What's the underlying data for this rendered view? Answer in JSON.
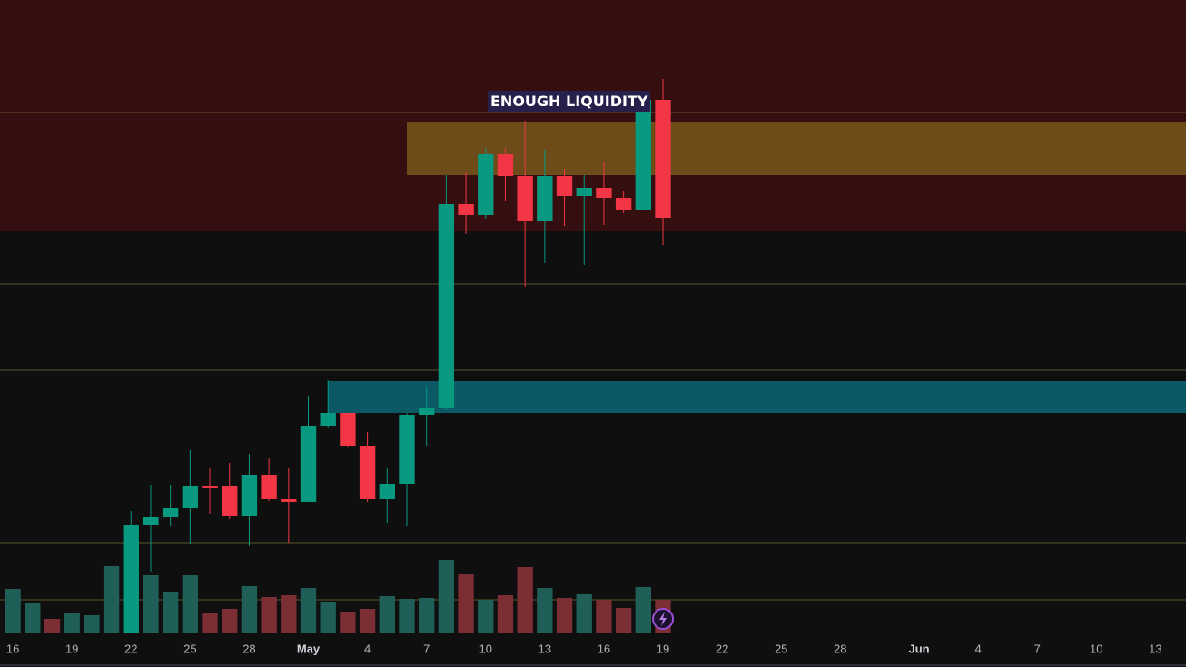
{
  "chart_data": {
    "type": "candlestick",
    "xlim": [
      -0.65,
      59.55
    ],
    "ylim": [
      0,
      700
    ],
    "xticks": [
      {
        "value": 0,
        "label": "16"
      },
      {
        "value": 3,
        "label": "19"
      },
      {
        "value": 6,
        "label": "22"
      },
      {
        "value": 9,
        "label": "25"
      },
      {
        "value": 12,
        "label": "28"
      },
      {
        "value": 15,
        "label": "May"
      },
      {
        "value": 18,
        "label": "4"
      },
      {
        "value": 21,
        "label": "7"
      },
      {
        "value": 24,
        "label": "10"
      },
      {
        "value": 27,
        "label": "13"
      },
      {
        "value": 30,
        "label": "16"
      },
      {
        "value": 33,
        "label": "19"
      },
      {
        "value": 36,
        "label": "22"
      },
      {
        "value": 39,
        "label": "25"
      },
      {
        "value": 42,
        "label": "28"
      },
      {
        "value": 46,
        "label": "Jun"
      },
      {
        "value": 49,
        "label": "4"
      },
      {
        "value": 52,
        "label": "7"
      },
      {
        "value": 55,
        "label": "10"
      },
      {
        "value": 58,
        "label": "13"
      }
    ],
    "up_color": "#089981",
    "down_color": "#f23645",
    "series": [
      {
        "x": [
          6,
          7,
          8,
          9,
          10,
          11,
          12,
          13,
          14,
          15,
          16,
          17,
          18,
          19,
          20,
          21,
          22,
          23,
          24,
          25,
          26,
          27,
          28,
          29,
          30,
          31,
          32,
          33
        ],
        "open": [
          3,
          121,
          130,
          140,
          164,
          164,
          131,
          177,
          150,
          147,
          231,
          245,
          208,
          150,
          167,
          243,
          250,
          475,
          463,
          530,
          506,
          457,
          506,
          484,
          493,
          482,
          469,
          590
        ],
        "high": [
          137,
          166,
          166,
          204,
          184,
          190,
          200,
          195,
          184,
          264,
          281,
          245,
          224,
          184,
          245,
          274,
          507,
          510,
          537,
          537,
          567,
          535,
          514,
          507,
          521,
          490,
          597,
          613
        ],
        "low": [
          3,
          70,
          120,
          100,
          134,
          128,
          98,
          148,
          102,
          147,
          228,
          207,
          147,
          124,
          120,
          208,
          248,
          442,
          459,
          479,
          384,
          410,
          451,
          408,
          452,
          465,
          469,
          430
        ],
        "close": [
          121,
          130,
          140,
          164,
          163,
          131,
          177,
          150,
          147,
          231,
          245,
          208,
          150,
          167,
          243,
          250,
          475,
          463,
          530,
          506,
          457,
          506,
          484,
          493,
          482,
          469,
          590,
          460
        ]
      }
    ],
    "volume": {
      "x": [
        0,
        1,
        2,
        3,
        4,
        5,
        6,
        7,
        8,
        9,
        10,
        11,
        12,
        13,
        14,
        15,
        16,
        17,
        18,
        19,
        20,
        21,
        22,
        23,
        24,
        25,
        26,
        27,
        28,
        29,
        30,
        31,
        32,
        33
      ],
      "values": [
        49,
        33,
        16,
        23,
        20,
        74,
        101,
        64,
        46,
        64,
        23,
        27,
        52,
        40,
        42,
        50,
        35,
        24,
        27,
        41,
        38,
        39,
        81,
        65,
        37,
        42,
        73,
        50,
        39,
        43,
        37,
        28,
        51,
        37
      ],
      "colors": [
        "#1f5f57",
        "#1f5f57",
        "#7b2e33",
        "#1f5f57",
        "#1f5f57",
        "#1f5f57",
        "#1f5f57",
        "#1f5f57",
        "#1f5f57",
        "#1f5f57",
        "#7b2e33",
        "#7b2e33",
        "#1f5f57",
        "#7b2e33",
        "#7b2e33",
        "#1f5f57",
        "#1f5f57",
        "#7b2e33",
        "#7b2e33",
        "#1f5f57",
        "#1f5f57",
        "#1f5f57",
        "#1f5f57",
        "#7b2e33",
        "#1f5f57",
        "#7b2e33",
        "#7b2e33",
        "#1f5f57",
        "#7b2e33",
        "#1f5f57",
        "#7b2e33",
        "#7b2e33",
        "#1f5f57",
        "#7b2e33"
      ],
      "vlim": [
        0,
        700
      ]
    },
    "zones": [
      {
        "x": -0.65,
        "ylim": [
          445,
          700
        ],
        "color": "#350f10"
      },
      {
        "x": 20,
        "ylim": [
          507,
          566
        ],
        "color": "#6e4c19"
      },
      {
        "x": 16,
        "ylim": [
          245,
          280
        ],
        "color": "#0b5964"
      }
    ],
    "levels": {
      "values": [
        576,
        387,
        292,
        102,
        39
      ],
      "color": "#5a5427"
    },
    "annotation": "ENOUGH LIQUIDITY"
  }
}
